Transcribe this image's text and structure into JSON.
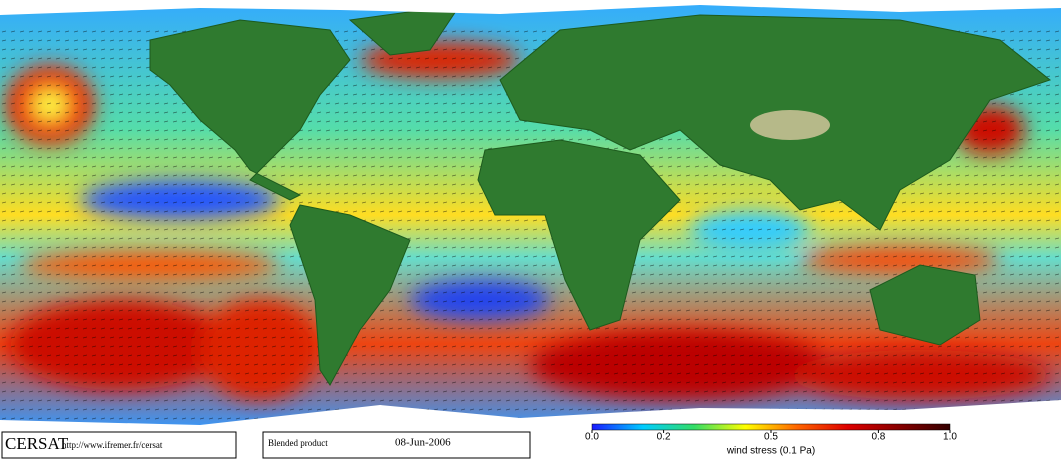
{
  "footer": {
    "logo": "CERSAT",
    "url": "http://www.ifremer.fr/cersat",
    "product": "Blended product",
    "date": "08-Jun-2006"
  },
  "colorbar": {
    "lim": [
      0,
      1
    ],
    "ticks": [
      {
        "value": 0,
        "label": "0.0"
      },
      0.2,
      0.5,
      0.8,
      {
        "value": 1,
        "label": "1.0"
      }
    ],
    "label": "wind stress (0.1 Pa)",
    "colors": [
      "#1a1aff",
      "#00ccff",
      "#33dd66",
      "#ffff00",
      "#ff6600",
      "#dd0000",
      "#880000",
      "#330000"
    ]
  }
}
